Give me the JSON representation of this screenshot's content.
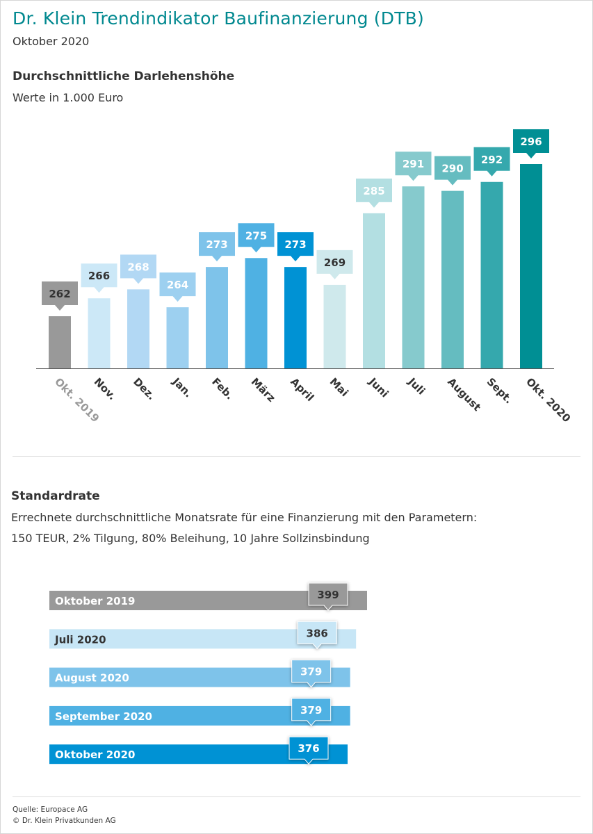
{
  "header": {
    "title": "Dr. Klein Trendindikator Baufinanzierung (DTB)",
    "subtitle": "Oktober 2020"
  },
  "section1": {
    "title": "Durchschnittliche Darlehenshöhe",
    "subtitle": "Werte in 1.000 Euro"
  },
  "section2": {
    "title": "Standardrate",
    "line1": "Errechnete durchschnittliche Monatsrate für eine Finanzierung mit den Parametern:",
    "line2": "150 TEUR, 2% Tilgung, 80% Beleihung, 10 Jahre Sollzinsbindung"
  },
  "footer": {
    "source": "Quelle: Europace AG",
    "copyright": "© Dr. Klein Privatkunden AG"
  },
  "chart_data": [
    {
      "type": "bar",
      "title": "Durchschnittliche Darlehenshöhe",
      "ylabel": "Werte in 1.000 Euro",
      "categories": [
        "Okt. 2019",
        "Nov.",
        "Dez.",
        "Jan.",
        "Feb.",
        "März",
        "April",
        "Mai",
        "Juni",
        "Juli",
        "August",
        "Sept.",
        "Okt. 2020"
      ],
      "values": [
        262,
        266,
        268,
        264,
        273,
        275,
        273,
        269,
        285,
        291,
        290,
        292,
        296
      ],
      "colors": [
        "#999999",
        "#cce8f7",
        "#b2d8f4",
        "#9dd0f0",
        "#7ec3ea",
        "#4fb1e3",
        "#0092d4",
        "#cfe9ec",
        "#b3dfe2",
        "#86cacd",
        "#65bcc0",
        "#35a8ad",
        "#008f94"
      ],
      "label_text_colors": [
        "#333333",
        "#333333",
        "#ffffff",
        "#ffffff",
        "#ffffff",
        "#ffffff",
        "#ffffff",
        "#333333",
        "#ffffff",
        "#ffffff",
        "#ffffff",
        "#ffffff",
        "#ffffff"
      ],
      "tick_label_colors": [
        "#999999",
        "#333333",
        "#333333",
        "#333333",
        "#333333",
        "#333333",
        "#333333",
        "#333333",
        "#333333",
        "#333333",
        "#333333",
        "#333333",
        "#333333"
      ],
      "grid": false,
      "legend": "none"
    },
    {
      "type": "bar",
      "orientation": "horizontal",
      "title": "Standardrate",
      "categories": [
        "Oktober 2019",
        "Juli 2020",
        "August 2020",
        "September 2020",
        "Oktober 2020"
      ],
      "values": [
        399,
        386,
        379,
        379,
        376
      ],
      "colors": [
        "#999999",
        "#c7e6f6",
        "#7ec3ea",
        "#4fb1e3",
        "#0092d4"
      ],
      "category_text_colors": [
        "#ffffff",
        "#333333",
        "#ffffff",
        "#ffffff",
        "#ffffff"
      ],
      "label_text_colors": [
        "#333333",
        "#333333",
        "#ffffff",
        "#ffffff",
        "#ffffff"
      ],
      "grid": false,
      "legend": "none"
    }
  ]
}
